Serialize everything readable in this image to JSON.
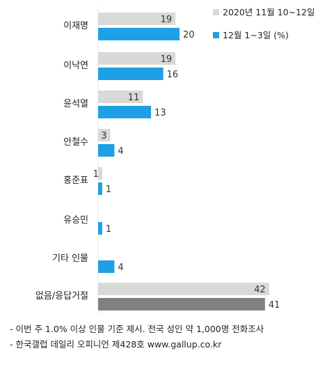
{
  "chart_data": {
    "type": "bar",
    "orientation": "horizontal",
    "categories": [
      "이재명",
      "이낙연",
      "윤석열",
      "안철수",
      "홍준표",
      "유승민",
      "기타 인물",
      "없음/응답거절"
    ],
    "series": [
      {
        "name": "2020년 11월 10~12일",
        "values": [
          19,
          19,
          11,
          3,
          1,
          null,
          null,
          42
        ],
        "color": "#d9d9d9"
      },
      {
        "name": "12월 1~3일 (%)",
        "values": [
          20,
          16,
          13,
          4,
          1,
          1,
          4,
          41
        ],
        "color": "#1ea0e6"
      }
    ],
    "last_category_override_color": {
      "series1": "#d9d9d9",
      "series2": "#808080"
    },
    "title": "",
    "xlabel": "",
    "ylabel": "",
    "legend_position": "top-right",
    "grid": false
  },
  "notes": [
    "- 이번 주 1.0% 이상 인물 기준 제시. 전국 성인 약 1,000명 전화조사",
    "- 한국갤럽 데일리 오피니언 제428호 www.gallup.co.kr"
  ]
}
